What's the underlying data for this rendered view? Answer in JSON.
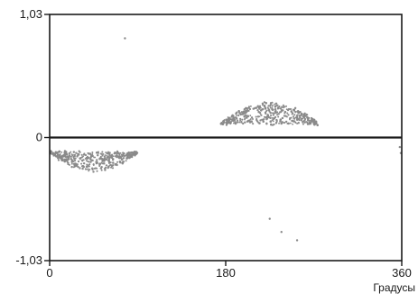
{
  "chart_data": {
    "type": "scatter",
    "title": "",
    "xlabel": "Градусы",
    "ylabel": "",
    "xlim": [
      0,
      360
    ],
    "ylim": [
      -1.03,
      1.03
    ],
    "x_ticks": [
      {
        "value": 0,
        "label": "0"
      },
      {
        "value": 180,
        "label": "180"
      },
      {
        "value": 360,
        "label": "360"
      }
    ],
    "y_ticks": [
      {
        "value": 1.03,
        "label": "1,03"
      },
      {
        "value": 0,
        "label": "0"
      },
      {
        "value": -1.03,
        "label": "-1,03"
      }
    ],
    "zero_line": true,
    "grid": false,
    "legend": "none",
    "colors": {
      "points": "#8a8a8a",
      "axis": "#1a1a1a",
      "zero_line": "#1a1a1a"
    },
    "clusters": [
      {
        "x_range": [
          0,
          90
        ],
        "y_peak": -0.28,
        "y_base": -0.12,
        "shape": "arch-down",
        "count": 420
      },
      {
        "x_range": [
          175,
          275
        ],
        "y_peak": 0.29,
        "y_base": 0.11,
        "shape": "arch-up",
        "count": 420
      }
    ],
    "series": [
      {
        "values": [
          [
            77,
            0.83
          ],
          [
            358,
            -0.08
          ],
          [
            359,
            -0.13
          ],
          [
            225,
            -0.68
          ],
          [
            237,
            -0.79
          ],
          [
            253,
            -0.86
          ]
        ]
      }
    ]
  }
}
